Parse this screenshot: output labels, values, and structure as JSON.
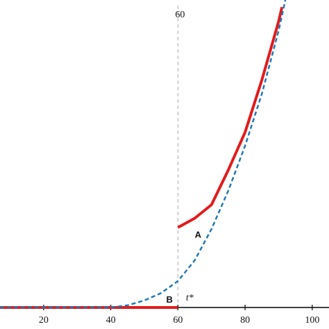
{
  "chart_data": {
    "type": "line",
    "xlim": [
      7,
      105
    ],
    "ylim": [
      0,
      100
    ],
    "xticks": [
      20,
      40,
      60,
      80,
      100
    ],
    "vline": 60,
    "annotations": [
      {
        "text": "A",
        "x": 66,
        "y": 23.5
      },
      {
        "text": "B",
        "x": 57.5,
        "y": 2.3
      },
      {
        "text": "t*",
        "x": 63.5,
        "y": 3
      }
    ],
    "series": [
      {
        "color": "#e31a1c",
        "style": "solid",
        "x": [
          7,
          20,
          40,
          60,
          null,
          60,
          65,
          70,
          75,
          80,
          85,
          90,
          91
        ],
        "values": [
          0,
          0,
          0,
          0,
          null,
          26,
          29,
          33.4,
          44.7,
          57,
          74,
          93,
          97.7
        ]
      },
      {
        "color": "#1f78b4",
        "style": "dashed",
        "x": [
          7,
          20,
          40,
          45,
          50,
          55,
          60,
          65,
          70,
          75,
          80,
          85,
          90,
          92
        ],
        "values": [
          0,
          0,
          0,
          0.7,
          2.3,
          4.7,
          8.6,
          15.3,
          25.5,
          38,
          52.6,
          69.5,
          90,
          100
        ]
      }
    ]
  }
}
